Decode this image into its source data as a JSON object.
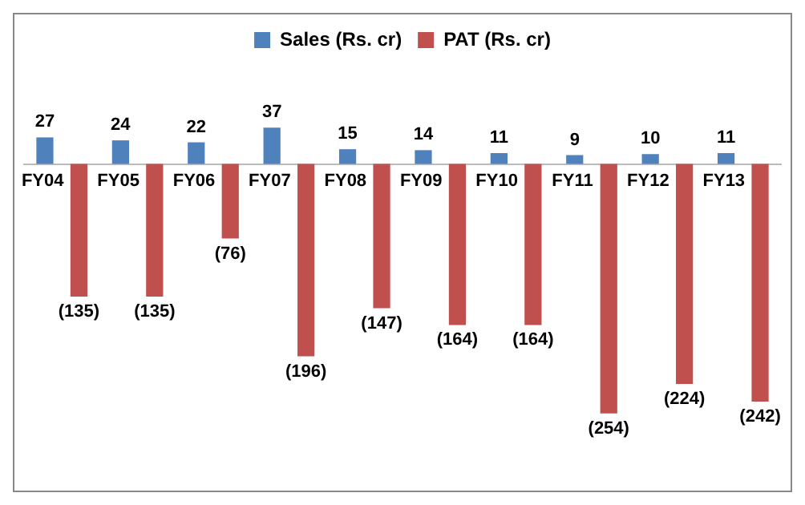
{
  "chart_data": {
    "type": "bar",
    "categories": [
      "FY04",
      "FY05",
      "FY06",
      "FY07",
      "FY08",
      "FY09",
      "FY10",
      "FY11",
      "FY12",
      "FY13"
    ],
    "legend": "top",
    "grid": false,
    "series": [
      {
        "name": "Sales (Rs. cr)",
        "color": "#4f81bd",
        "values": [
          27,
          24,
          22,
          37,
          15,
          14,
          11,
          9,
          10,
          11
        ],
        "value_labels": [
          "27",
          "24",
          "22",
          "37",
          "15",
          "14",
          "11",
          "9",
          "10",
          "11"
        ]
      },
      {
        "name": "PAT (Rs. cr)",
        "color": "#c0504d",
        "values": [
          -135,
          -135,
          -76,
          -196,
          -147,
          -164,
          -164,
          -254,
          -224,
          -242
        ],
        "value_labels": [
          "(135)",
          "(135)",
          "(76)",
          "(196)",
          "(147)",
          "(164)",
          "(164)",
          "(254)",
          "(224)",
          "(242)"
        ]
      }
    ]
  }
}
